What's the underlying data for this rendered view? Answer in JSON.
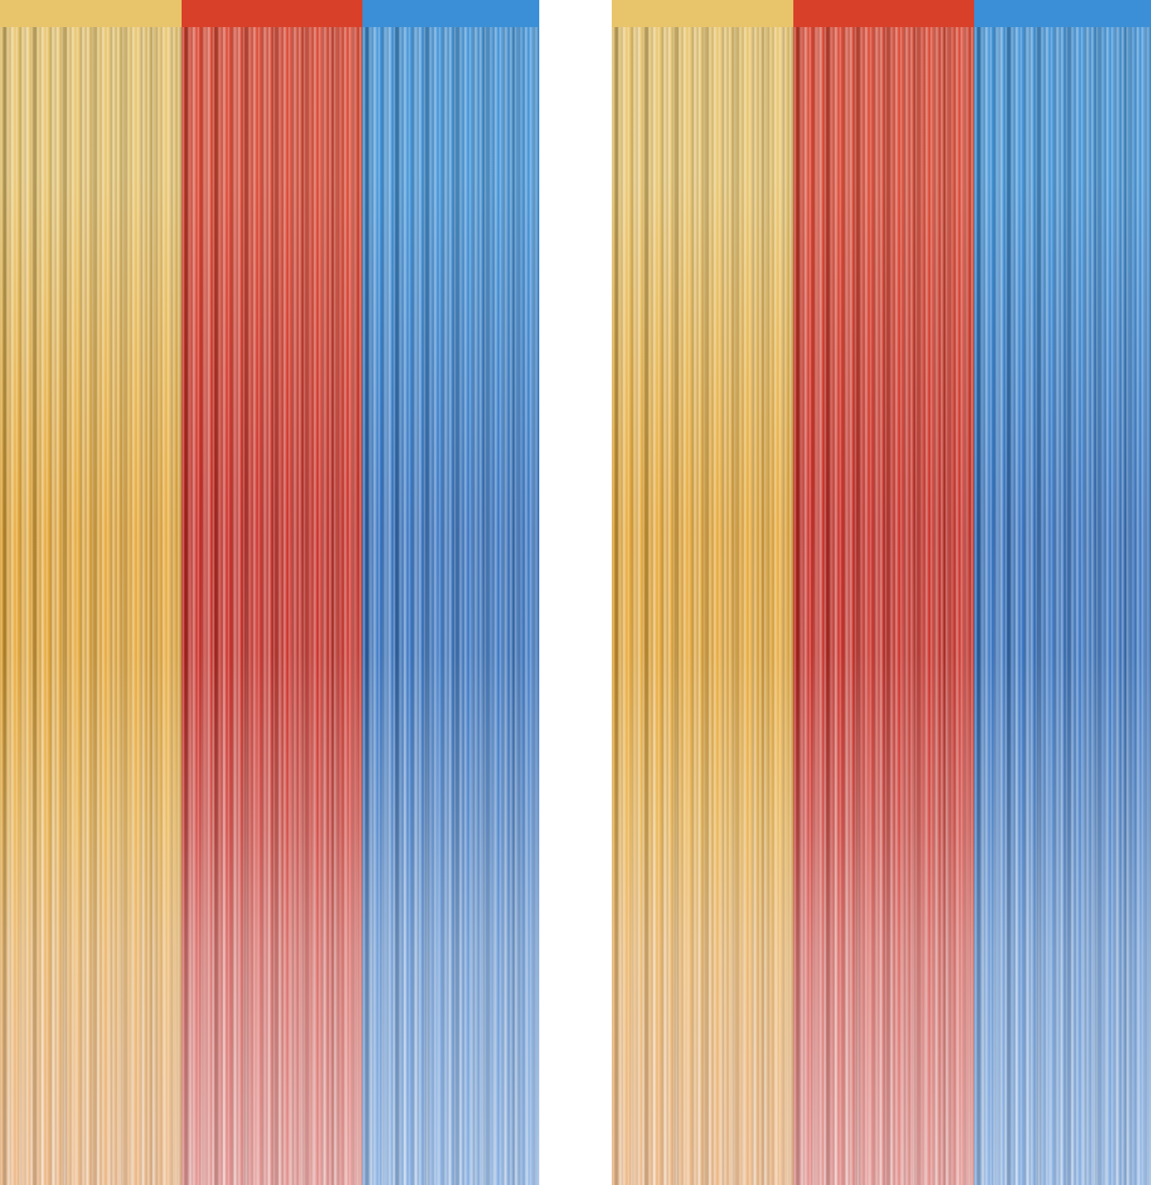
{
  "image": {
    "subject": "foil-fringe-curtains",
    "curtains": [
      {
        "panels": [
          {
            "color": "gold",
            "top": "#e8c46a",
            "mid": "#e6a632",
            "bottom": "#e08a3a"
          },
          {
            "color": "red",
            "top": "#d8402a",
            "mid": "#c8261e",
            "bottom": "#d0504a"
          },
          {
            "color": "blue",
            "top": "#3a8fd6",
            "mid": "#2f6fc0",
            "bottom": "#3f7fcf"
          }
        ]
      },
      {
        "panels": [
          {
            "color": "gold",
            "top": "#e8c46a",
            "mid": "#e6a632",
            "bottom": "#e08a3a"
          },
          {
            "color": "red",
            "top": "#d8402a",
            "mid": "#c8261e",
            "bottom": "#d0504a"
          },
          {
            "color": "blue",
            "top": "#3a8fd6",
            "mid": "#2f6fc0",
            "bottom": "#3f7fcf"
          }
        ]
      }
    ],
    "background": "#ffffff"
  }
}
